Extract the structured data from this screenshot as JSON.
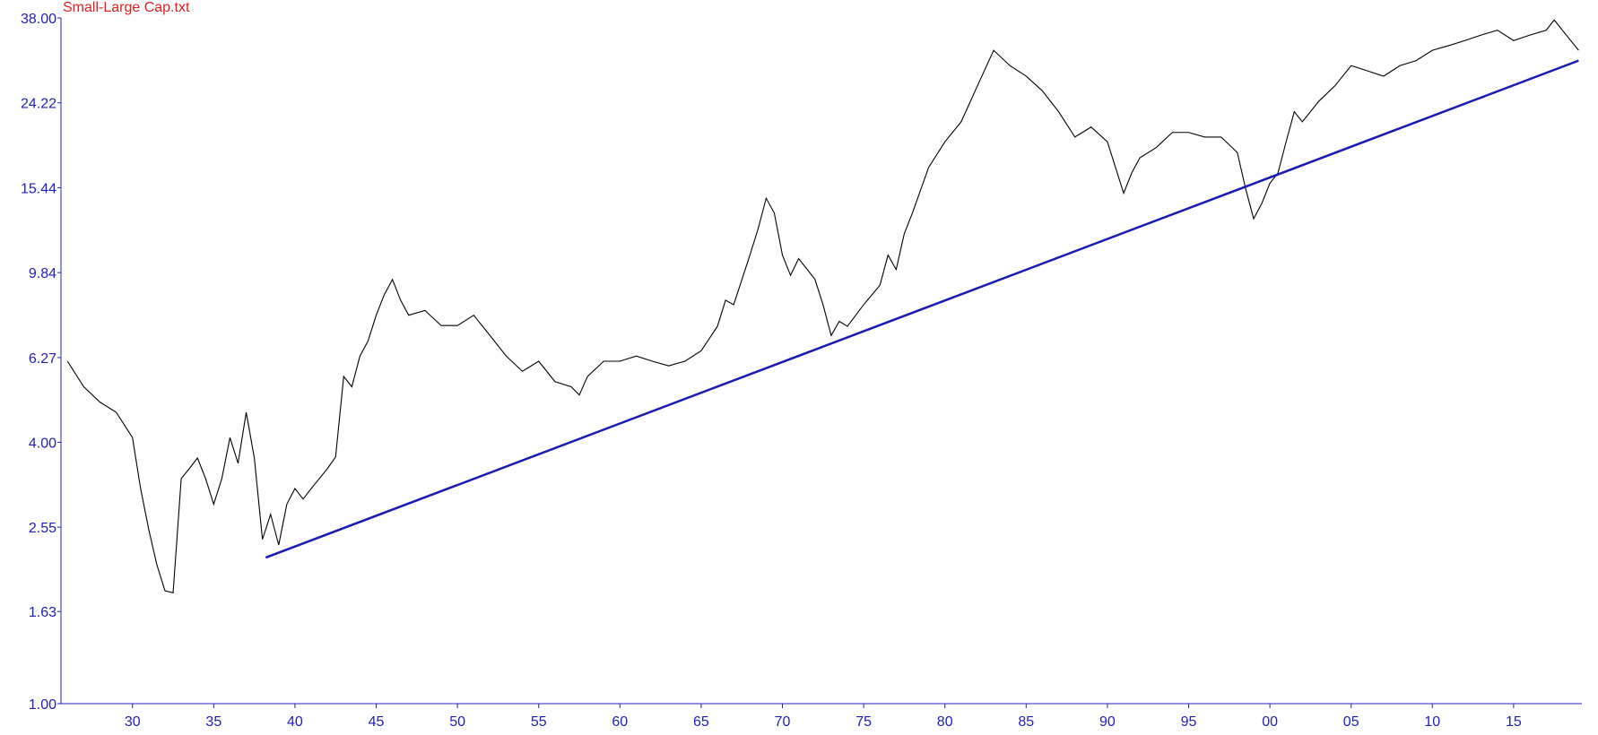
{
  "chart_data": {
    "type": "line",
    "title": "Small-Large Cap.txt",
    "log_y": true,
    "xlim": [
      1925.6,
      2019.2
    ],
    "ylim": [
      1,
      38
    ],
    "xticks": [
      {
        "value": 1930,
        "label": "30"
      },
      {
        "value": 1935,
        "label": "35"
      },
      {
        "value": 1940,
        "label": "40"
      },
      {
        "value": 1945,
        "label": "45"
      },
      {
        "value": 1950,
        "label": "50"
      },
      {
        "value": 1955,
        "label": "55"
      },
      {
        "value": 1960,
        "label": "60"
      },
      {
        "value": 1965,
        "label": "65"
      },
      {
        "value": 1970,
        "label": "70"
      },
      {
        "value": 1975,
        "label": "75"
      },
      {
        "value": 1980,
        "label": "80"
      },
      {
        "value": 1985,
        "label": "85"
      },
      {
        "value": 1990,
        "label": "90"
      },
      {
        "value": 1995,
        "label": "95"
      },
      {
        "value": 2000,
        "label": "00"
      },
      {
        "value": 2005,
        "label": "05"
      },
      {
        "value": 2010,
        "label": "10"
      },
      {
        "value": 2015,
        "label": "15"
      }
    ],
    "yticks": [
      {
        "value": 1,
        "label": "1.00"
      },
      1.63,
      2.55,
      {
        "value": 4,
        "label": "4.00"
      },
      6.27,
      9.84,
      15.44,
      24.22,
      {
        "value": 38,
        "label": "38.00"
      }
    ],
    "series": [
      {
        "color": "#000000",
        "x": [
          1926,
          1927,
          1928,
          1929,
          1930,
          1930.5,
          1931,
          1931.5,
          1932,
          1932.5,
          1933,
          1933.5,
          1934,
          1934.5,
          1935,
          1935.5,
          1936,
          1936.5,
          1937,
          1937.5,
          1938,
          1938.5,
          1939,
          1939.5,
          1940,
          1940.5,
          1941,
          1941.5,
          1942,
          1942.5,
          1943,
          1943.5,
          1944,
          1944.5,
          1945,
          1945.5,
          1946,
          1946.5,
          1947,
          1948,
          1949,
          1950,
          1951,
          1952,
          1953,
          1954,
          1955,
          1956,
          1957,
          1957.5,
          1958,
          1959,
          1960,
          1961,
          1962,
          1963,
          1964,
          1965,
          1966,
          1966.5,
          1967,
          1968,
          1968.5,
          1969,
          1969.5,
          1970,
          1970.5,
          1971,
          1972,
          1972.5,
          1973,
          1973.5,
          1974,
          1975,
          1976,
          1976.5,
          1977,
          1977.5,
          1978,
          1979,
          1980,
          1981,
          1982,
          1983,
          1984,
          1985,
          1986,
          1987,
          1988,
          1989,
          1990,
          1991,
          1991.5,
          1992,
          1993,
          1994,
          1995,
          1996,
          1997,
          1998,
          1998.5,
          1999,
          1999.5,
          2000,
          2000.5,
          2001,
          2001.5,
          2002,
          2003,
          2004,
          2005,
          2006,
          2007,
          2008,
          2009,
          2010,
          2011,
          2012,
          2013,
          2014,
          2015,
          2016,
          2017,
          2017.5,
          2018,
          2019
        ],
        "values": [
          6.15,
          5.37,
          4.95,
          4.69,
          4.1,
          3.13,
          2.52,
          2.09,
          1.82,
          1.8,
          3.3,
          3.48,
          3.68,
          3.3,
          2.88,
          3.3,
          4.1,
          3.58,
          4.69,
          3.68,
          2.39,
          2.73,
          2.32,
          2.88,
          3.13,
          2.96,
          3.13,
          3.3,
          3.48,
          3.7,
          5.67,
          5.37,
          6.32,
          6.85,
          7.85,
          8.76,
          9.49,
          8.5,
          7.85,
          8.05,
          7.43,
          7.43,
          7.85,
          7.05,
          6.32,
          5.83,
          6.15,
          5.52,
          5.37,
          5.14,
          5.67,
          6.15,
          6.15,
          6.32,
          6.15,
          6.0,
          6.15,
          6.5,
          7.4,
          8.5,
          8.3,
          10.8,
          12.4,
          14.6,
          13.5,
          10.8,
          9.7,
          10.6,
          9.5,
          8.3,
          7.05,
          7.6,
          7.4,
          8.3,
          9.2,
          10.8,
          10.0,
          12.1,
          13.5,
          17.2,
          19.7,
          21.9,
          26.5,
          32.0,
          29.5,
          27.9,
          25.8,
          23.1,
          20.2,
          21.3,
          19.7,
          15.0,
          16.7,
          18.1,
          19.1,
          20.7,
          20.7,
          20.2,
          20.2,
          18.6,
          15.4,
          13.1,
          14.2,
          15.8,
          16.7,
          19.7,
          23.1,
          21.9,
          24.4,
          26.5,
          29.5,
          28.7,
          27.9,
          29.5,
          30.3,
          32.0,
          32.8,
          33.7,
          34.7,
          35.6,
          33.7,
          34.7,
          35.6,
          37.6,
          35.6,
          32.0
        ]
      },
      {
        "color": "#1a1ab4",
        "x": [
          1938.2,
          2019
        ],
        "values": [
          2.17,
          30.3
        ]
      }
    ]
  }
}
